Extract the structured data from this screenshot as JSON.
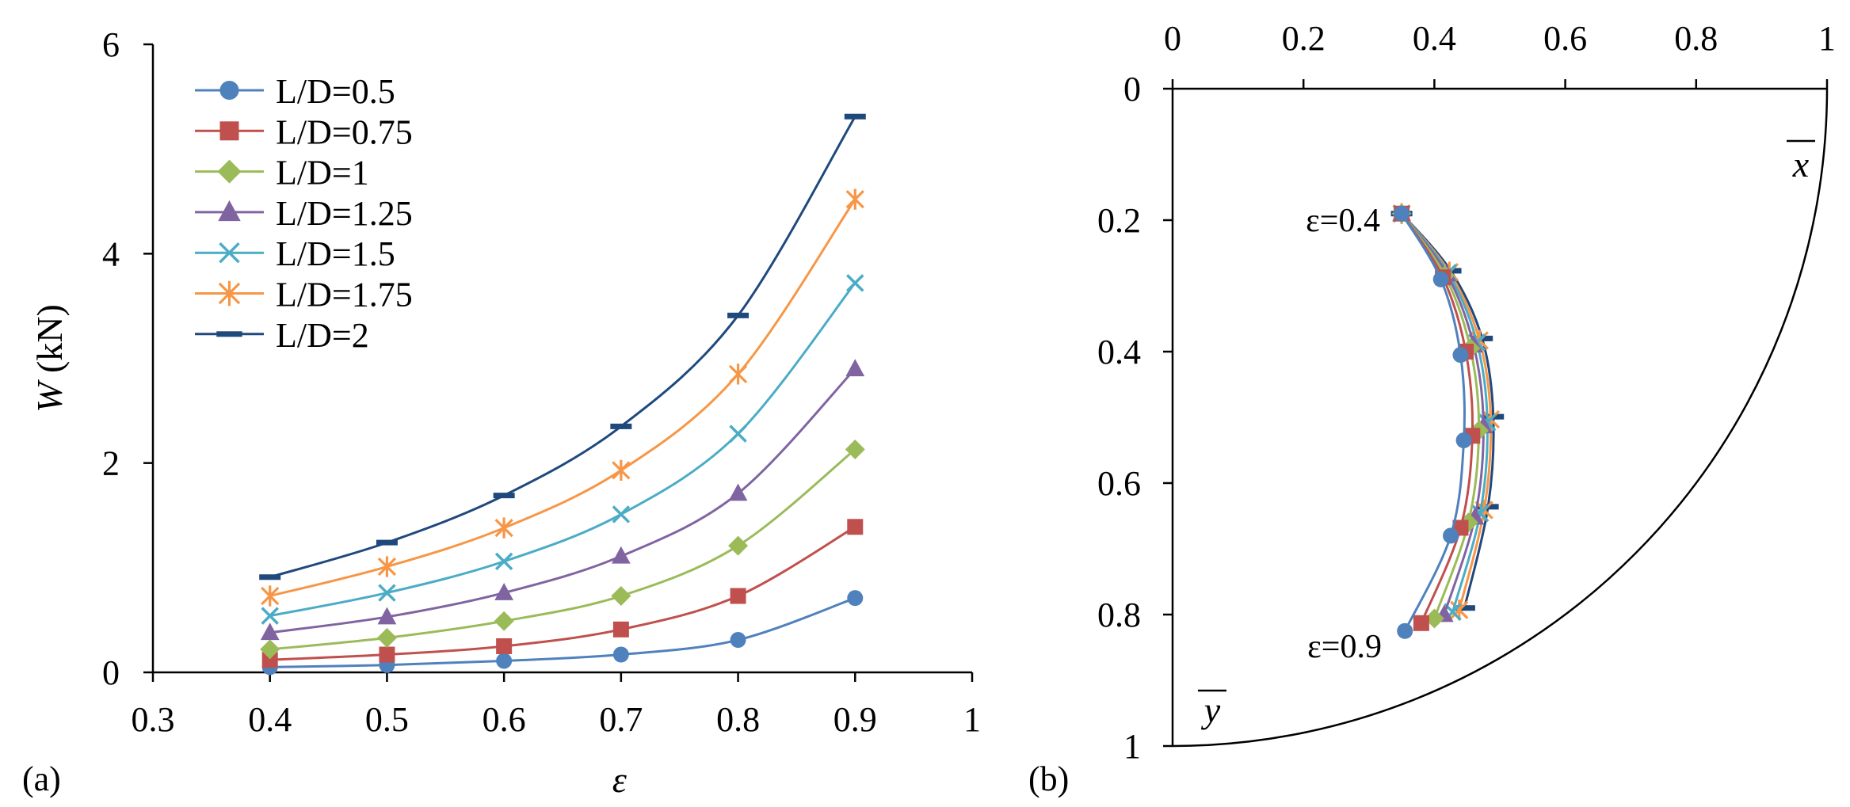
{
  "chart_data": [
    {
      "type": "line",
      "panel_label": "(a)",
      "xlabel": "ε",
      "ylabel_var": "W",
      "ylabel_unit": " (kN)",
      "xlim": [
        0.3,
        1
      ],
      "ylim": [
        0,
        6
      ],
      "xticks": [
        "0.3",
        "0.4",
        "0.5",
        "0.6",
        "0.7",
        "0.8",
        "0.9",
        "1"
      ],
      "yticks": [
        "0",
        "2",
        "4",
        "6"
      ],
      "legend_position": "top-left",
      "x": [
        0.4,
        0.5,
        0.6,
        0.7,
        0.8,
        0.9
      ],
      "series": [
        {
          "name": "L/D=0.5",
          "color": "#4f81bd",
          "marker": "circle",
          "values": [
            0.05,
            0.07,
            0.11,
            0.17,
            0.31,
            0.71
          ]
        },
        {
          "name": "L/D=0.75",
          "color": "#c0504d",
          "marker": "square",
          "values": [
            0.12,
            0.17,
            0.25,
            0.41,
            0.73,
            1.39
          ]
        },
        {
          "name": "L/D=1",
          "color": "#9bbb59",
          "marker": "diamond",
          "values": [
            0.22,
            0.33,
            0.49,
            0.73,
            1.21,
            2.13
          ]
        },
        {
          "name": "L/D=1.25",
          "color": "#8064a2",
          "marker": "triangle",
          "values": [
            0.38,
            0.53,
            0.76,
            1.11,
            1.71,
            2.9
          ]
        },
        {
          "name": "L/D=1.5",
          "color": "#4bacc6",
          "marker": "x",
          "values": [
            0.54,
            0.76,
            1.06,
            1.51,
            2.28,
            3.72
          ]
        },
        {
          "name": "L/D=1.75",
          "color": "#f79646",
          "marker": "star",
          "values": [
            0.73,
            1.01,
            1.38,
            1.93,
            2.85,
            4.52
          ]
        },
        {
          "name": "L/D=2",
          "color": "#1f497d",
          "marker": "dash",
          "values": [
            0.91,
            1.24,
            1.69,
            2.35,
            3.41,
            5.31
          ]
        }
      ]
    },
    {
      "type": "line",
      "panel_label": "(b)",
      "description_axes": "x̄ axis on top (0 to 1), ȳ axis on left increasing downward (0 to 1), quarter-circle boundary of unit radius",
      "xlabel": "x",
      "ylabel": "y",
      "xlim": [
        0,
        1
      ],
      "ylim": [
        0,
        1
      ],
      "xticks": [
        "0",
        "0.2",
        "0.4",
        "0.6",
        "0.8",
        "1"
      ],
      "yticks": [
        "0",
        "0.2",
        "0.4",
        "0.6",
        "0.8",
        "1"
      ],
      "annotations": [
        "ε=0.4",
        "ε=0.9"
      ],
      "series": [
        {
          "name": "L/D=0.5",
          "color": "#4f81bd",
          "marker": "circle",
          "points": [
            [
              0.35,
              0.19
            ],
            [
              0.41,
              0.29
            ],
            [
              0.44,
              0.405
            ],
            [
              0.445,
              0.535
            ],
            [
              0.425,
              0.68
            ],
            [
              0.355,
              0.825
            ]
          ]
        },
        {
          "name": "L/D=0.75",
          "color": "#c0504d",
          "marker": "square",
          "points": [
            [
              0.35,
              0.19
            ],
            [
              0.413,
              0.287
            ],
            [
              0.448,
              0.4
            ],
            [
              0.458,
              0.528
            ],
            [
              0.44,
              0.668
            ],
            [
              0.38,
              0.813
            ]
          ]
        },
        {
          "name": "L/D=1",
          "color": "#9bbb59",
          "marker": "diamond",
          "points": [
            [
              0.35,
              0.19
            ],
            [
              0.416,
              0.284
            ],
            [
              0.455,
              0.395
            ],
            [
              0.468,
              0.52
            ],
            [
              0.452,
              0.66
            ],
            [
              0.4,
              0.806
            ]
          ]
        },
        {
          "name": "L/D=1.25",
          "color": "#8064a2",
          "marker": "triangle",
          "points": [
            [
              0.35,
              0.19
            ],
            [
              0.419,
              0.282
            ],
            [
              0.46,
              0.39
            ],
            [
              0.475,
              0.513
            ],
            [
              0.462,
              0.652
            ],
            [
              0.415,
              0.8
            ]
          ]
        },
        {
          "name": "L/D=1.5",
          "color": "#4bacc6",
          "marker": "x",
          "points": [
            [
              0.35,
              0.19
            ],
            [
              0.421,
              0.28
            ],
            [
              0.465,
              0.386
            ],
            [
              0.481,
              0.508
            ],
            [
              0.47,
              0.646
            ],
            [
              0.428,
              0.796
            ]
          ]
        },
        {
          "name": "L/D=1.75",
          "color": "#f79646",
          "marker": "star",
          "points": [
            [
              0.35,
              0.19
            ],
            [
              0.423,
              0.279
            ],
            [
              0.469,
              0.383
            ],
            [
              0.486,
              0.503
            ],
            [
              0.476,
              0.641
            ],
            [
              0.438,
              0.793
            ]
          ]
        },
        {
          "name": "L/D=2",
          "color": "#1f497d",
          "marker": "dash",
          "points": [
            [
              0.35,
              0.19
            ],
            [
              0.425,
              0.277
            ],
            [
              0.473,
              0.38
            ],
            [
              0.49,
              0.499
            ],
            [
              0.482,
              0.636
            ],
            [
              0.446,
              0.79
            ]
          ]
        }
      ]
    }
  ]
}
